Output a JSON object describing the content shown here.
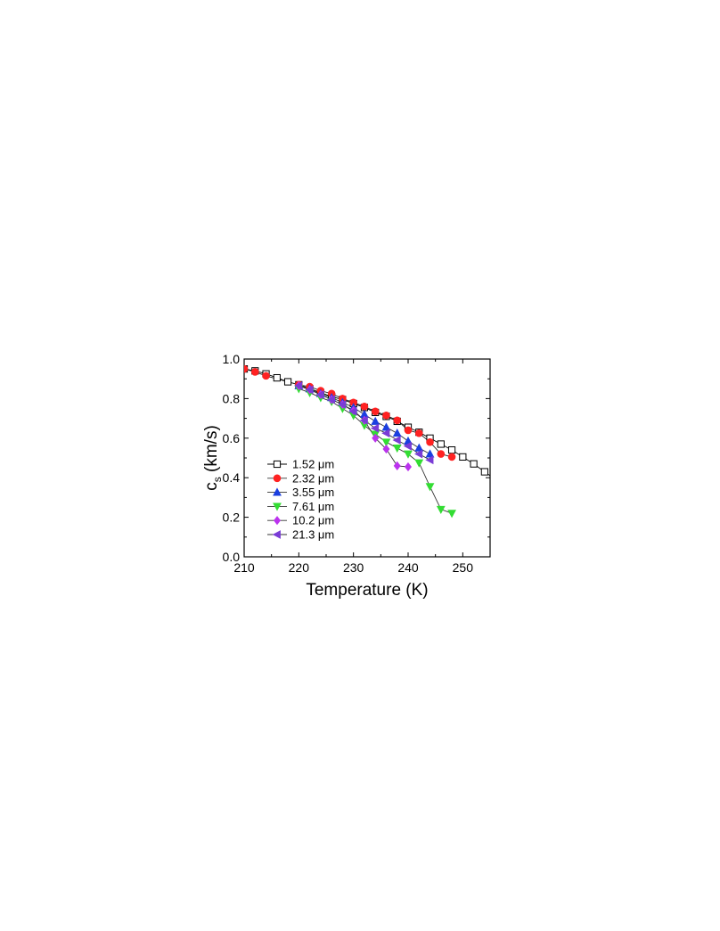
{
  "chart_data": {
    "type": "scatter",
    "xlabel": "Temperature (K)",
    "ylabel_main": "c",
    "ylabel_sub": "s",
    "ylabel_rest": " (km/s)",
    "xlim": [
      210,
      255
    ],
    "ylim": [
      0.0,
      1.0
    ],
    "x_ticks": [
      210,
      220,
      230,
      240,
      250
    ],
    "x_tick_labels": [
      "210",
      "220",
      "230",
      "240",
      "250"
    ],
    "y_ticks": [
      0.0,
      0.2,
      0.4,
      0.6,
      0.8,
      1.0
    ],
    "y_tick_labels": [
      "0.0",
      "0.2",
      "0.4",
      "0.6",
      "0.8",
      "1.0"
    ],
    "grid": false,
    "legend_position": "lower-left",
    "series": [
      {
        "name": "1.52 μm",
        "marker": "open-square",
        "color": "#000000",
        "x": [
          210,
          212,
          214,
          216,
          218,
          220,
          222,
          224,
          226,
          228,
          230,
          232,
          234,
          236,
          238,
          240,
          242,
          244,
          246,
          248,
          250,
          252,
          254,
          256
        ],
        "y": [
          0.95,
          0.94,
          0.925,
          0.905,
          0.885,
          0.87,
          0.85,
          0.83,
          0.81,
          0.795,
          0.775,
          0.755,
          0.73,
          0.71,
          0.685,
          0.655,
          0.63,
          0.6,
          0.57,
          0.54,
          0.505,
          0.47,
          0.43,
          0.39
        ]
      },
      {
        "name": "2.32 μm",
        "marker": "filled-circle",
        "color": "#ff2222",
        "x": [
          210,
          212,
          214,
          220,
          222,
          224,
          226,
          228,
          230,
          232,
          234,
          236,
          238,
          240,
          242,
          244,
          246,
          248
        ],
        "y": [
          0.95,
          0.935,
          0.915,
          0.87,
          0.86,
          0.84,
          0.825,
          0.8,
          0.78,
          0.76,
          0.735,
          0.715,
          0.69,
          0.64,
          0.625,
          0.58,
          0.52,
          0.505
        ]
      },
      {
        "name": "3.55 μm",
        "marker": "filled-triangle-up",
        "color": "#1a3fe0",
        "x": [
          220,
          222,
          224,
          226,
          228,
          230,
          232,
          234,
          236,
          238,
          240,
          242,
          244
        ],
        "y": [
          0.865,
          0.85,
          0.825,
          0.805,
          0.78,
          0.755,
          0.72,
          0.685,
          0.655,
          0.625,
          0.585,
          0.55,
          0.52
        ]
      },
      {
        "name": "7.61 μm",
        "marker": "filled-triangle-down",
        "color": "#33dd33",
        "x": [
          220,
          222,
          224,
          226,
          228,
          230,
          232,
          234,
          236,
          238,
          240,
          242,
          244,
          246,
          248
        ],
        "y": [
          0.85,
          0.83,
          0.805,
          0.785,
          0.75,
          0.715,
          0.665,
          0.62,
          0.58,
          0.55,
          0.52,
          0.475,
          0.355,
          0.24,
          0.22
        ]
      },
      {
        "name": "10.2 μm",
        "marker": "filled-diamond",
        "color": "#bb33ee",
        "x": [
          220,
          222,
          224,
          226,
          228,
          230,
          232,
          234,
          236,
          238,
          240
        ],
        "y": [
          0.865,
          0.845,
          0.82,
          0.795,
          0.77,
          0.74,
          0.69,
          0.6,
          0.545,
          0.46,
          0.455
        ]
      },
      {
        "name": "21.3 μm",
        "marker": "filled-triangle-left",
        "color": "#7a3cd6",
        "x": [
          220,
          222,
          224,
          226,
          228,
          230,
          232,
          234,
          236,
          238,
          240,
          242,
          244
        ],
        "y": [
          0.865,
          0.845,
          0.82,
          0.795,
          0.77,
          0.735,
          0.69,
          0.65,
          0.625,
          0.59,
          0.56,
          0.52,
          0.49
        ]
      }
    ]
  }
}
